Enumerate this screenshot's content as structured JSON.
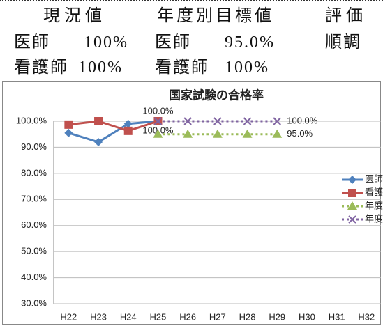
{
  "table": {
    "header": [
      "現況値",
      "年度別目標値",
      "評価"
    ],
    "rows": [
      [
        "医師",
        "100%",
        "医師",
        "95.0%",
        "順調"
      ],
      [
        "看護師",
        "100%",
        "看護師",
        "100%"
      ]
    ]
  },
  "chart_data": {
    "type": "line",
    "title": "国家試験の合格率",
    "categories": [
      "H22",
      "H23",
      "H24",
      "H25",
      "H26",
      "H27",
      "H28",
      "H29",
      "H30",
      "H31",
      "H32"
    ],
    "series": [
      {
        "name": "医師",
        "color": "#4f81bd",
        "marker": "diamond",
        "line_style": "solid",
        "values": [
          95.5,
          92,
          99,
          100,
          null,
          null,
          null,
          null,
          null,
          null,
          null
        ],
        "value_labels": [
          null,
          null,
          null,
          "100.0%",
          null,
          null,
          null,
          null,
          null,
          null,
          null
        ]
      },
      {
        "name": "看護師",
        "color": "#c0504d",
        "marker": "square",
        "line_style": "solid",
        "values": [
          98.7,
          100,
          96.3,
          100,
          null,
          null,
          null,
          null,
          null,
          null,
          null
        ],
        "value_labels": [
          null,
          null,
          null,
          "100.0%",
          null,
          null,
          null,
          null,
          null,
          null,
          null
        ]
      },
      {
        "name": "年度別目標(医)",
        "color": "#9bbb59",
        "marker": "triangle",
        "line_style": "dotted",
        "values": [
          null,
          null,
          null,
          95,
          95,
          95,
          95,
          95,
          null,
          null,
          null
        ],
        "value_labels": [
          null,
          null,
          null,
          null,
          null,
          null,
          null,
          "95.0%",
          null,
          null,
          null
        ]
      },
      {
        "name": "年度別目標(看)",
        "color": "#8064a2",
        "marker": "x",
        "line_style": "dotted",
        "values": [
          null,
          null,
          null,
          100,
          100,
          100,
          100,
          100,
          null,
          null,
          null
        ],
        "value_labels": [
          null,
          null,
          null,
          null,
          null,
          null,
          null,
          "100.0%",
          null,
          null,
          null
        ]
      }
    ],
    "ylim": [
      30,
      100
    ],
    "yticks": [
      {
        "value": 30,
        "label": "30.0%"
      },
      {
        "value": 40,
        "label": "40.0%"
      },
      {
        "value": 50,
        "label": "50.0%"
      },
      {
        "value": 60,
        "label": "60.0%"
      },
      {
        "value": 70,
        "label": "70.0%"
      },
      {
        "value": 80,
        "label": "80.0%"
      },
      {
        "value": 90,
        "label": "90.0%"
      },
      {
        "value": 100,
        "label": "100.0%"
      }
    ],
    "grid": true,
    "legend": "right"
  }
}
